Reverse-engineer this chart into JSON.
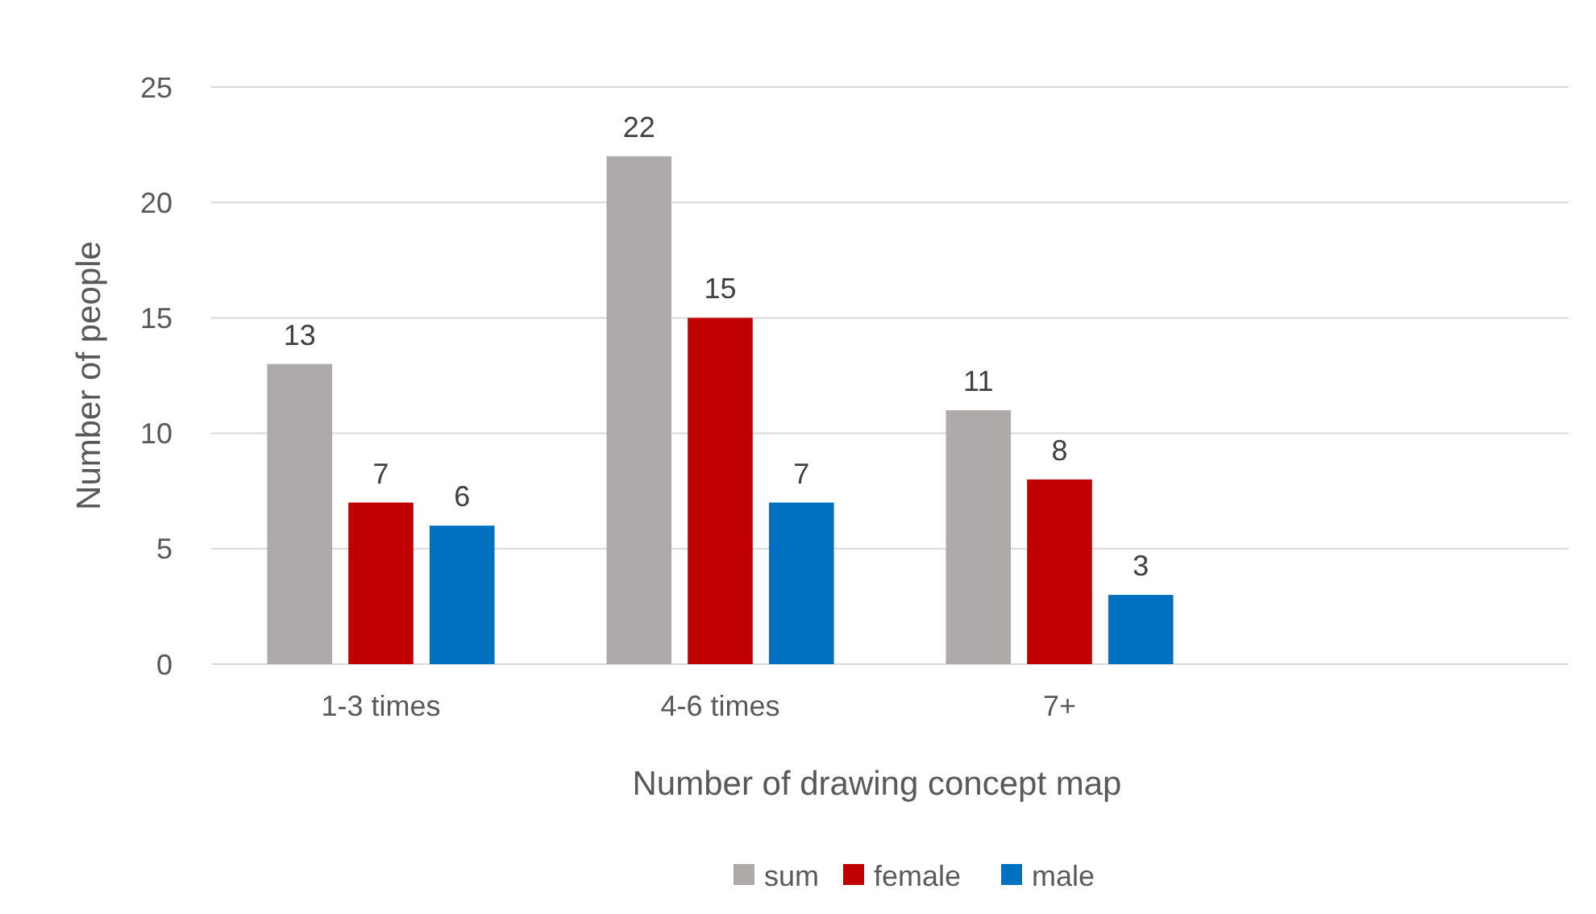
{
  "chart_data": {
    "type": "bar",
    "xlabel": "Number of drawing concept map",
    "ylabel": "Number of people",
    "categories": [
      "1-3 times",
      "4-6 times",
      "7+",
      null
    ],
    "series": [
      {
        "name": "sum",
        "color": "#aeaaaa",
        "values": [
          13,
          22,
          11,
          null
        ]
      },
      {
        "name": "female",
        "color": "#c00000",
        "values": [
          7,
          15,
          8,
          null
        ]
      },
      {
        "name": "male",
        "color": "#0070c0",
        "values": [
          6,
          7,
          3,
          null
        ]
      }
    ],
    "ylim": [
      0,
      25
    ],
    "yticks": [
      0,
      5,
      10,
      15,
      20,
      25
    ],
    "grid": "y",
    "legend": "bottom",
    "data_labels": true
  }
}
